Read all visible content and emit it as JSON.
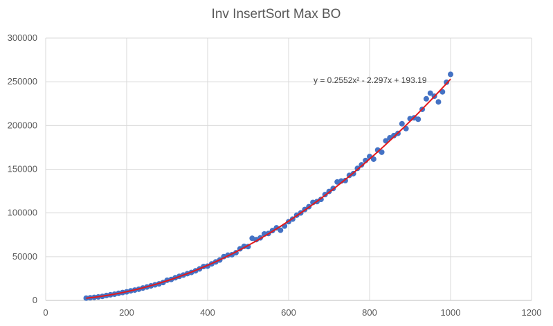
{
  "chart_data": {
    "type": "scatter",
    "title": "Inv InsertSort Max BO",
    "xlabel": "",
    "ylabel": "",
    "xlim": [
      0,
      1200
    ],
    "ylim": [
      0,
      300000
    ],
    "x_ticks": [
      0,
      200,
      400,
      600,
      800,
      1000,
      1200
    ],
    "y_ticks": [
      0,
      50000,
      100000,
      150000,
      200000,
      250000,
      300000
    ],
    "x_tick_labels": [
      "0",
      "200",
      "400",
      "600",
      "800",
      "1000",
      "1200"
    ],
    "y_tick_labels": [
      "0",
      "50000",
      "100000",
      "150000",
      "200000",
      "250000",
      "300000"
    ],
    "grid": true,
    "legend": false,
    "marker_color": "#4472c4",
    "trendline_color": "#e31a1c",
    "trendline": {
      "type": "polynomial",
      "degree": 2,
      "coefficients": [
        0.2552,
        -2.297,
        193.19
      ],
      "equation": "y = 0.2552x² - 2.297x + 193.19"
    },
    "series": [
      {
        "x": [
          100,
          110,
          120,
          130,
          140,
          150,
          160,
          170,
          180,
          190,
          200,
          210,
          220,
          230,
          240,
          250,
          260,
          270,
          280,
          290,
          300,
          310,
          320,
          330,
          340,
          350,
          360,
          370,
          380,
          390,
          400,
          410,
          420,
          430,
          440,
          450,
          460,
          470,
          480,
          490,
          500,
          510,
          520,
          530,
          540,
          550,
          560,
          570,
          580,
          590,
          600,
          610,
          620,
          630,
          640,
          650,
          660,
          670,
          680,
          690,
          700,
          710,
          720,
          730,
          740,
          750,
          760,
          770,
          780,
          790,
          800,
          810,
          820,
          830,
          840,
          850,
          860,
          870,
          880,
          890,
          900,
          910,
          920,
          930,
          940,
          950,
          960,
          970,
          980,
          990,
          1000
        ],
        "y": [
          2600,
          3000,
          3500,
          4000,
          4600,
          5600,
          6400,
          7100,
          8100,
          9000,
          9800,
          10900,
          11800,
          12800,
          14100,
          15300,
          16600,
          17800,
          18900,
          20400,
          23100,
          23900,
          25900,
          27500,
          29000,
          30600,
          32000,
          33800,
          36000,
          38700,
          39200,
          41800,
          44000,
          46200,
          50100,
          51700,
          52200,
          54500,
          59000,
          61800,
          61500,
          71000,
          69500,
          71500,
          76000,
          76500,
          79800,
          83000,
          80200,
          85000,
          90000,
          93000,
          97500,
          100000,
          104000,
          107200,
          112000,
          113000,
          115500,
          121000,
          124600,
          128000,
          135500,
          136500,
          137000,
          143000,
          145000,
          151000,
          155000,
          160000,
          164500,
          161500,
          172000,
          169500,
          182500,
          186000,
          188500,
          191000,
          202000,
          196500,
          207800,
          208800,
          207200,
          218500,
          230500,
          237000,
          233500,
          227000,
          238500,
          249500,
          258500
        ]
      }
    ]
  }
}
